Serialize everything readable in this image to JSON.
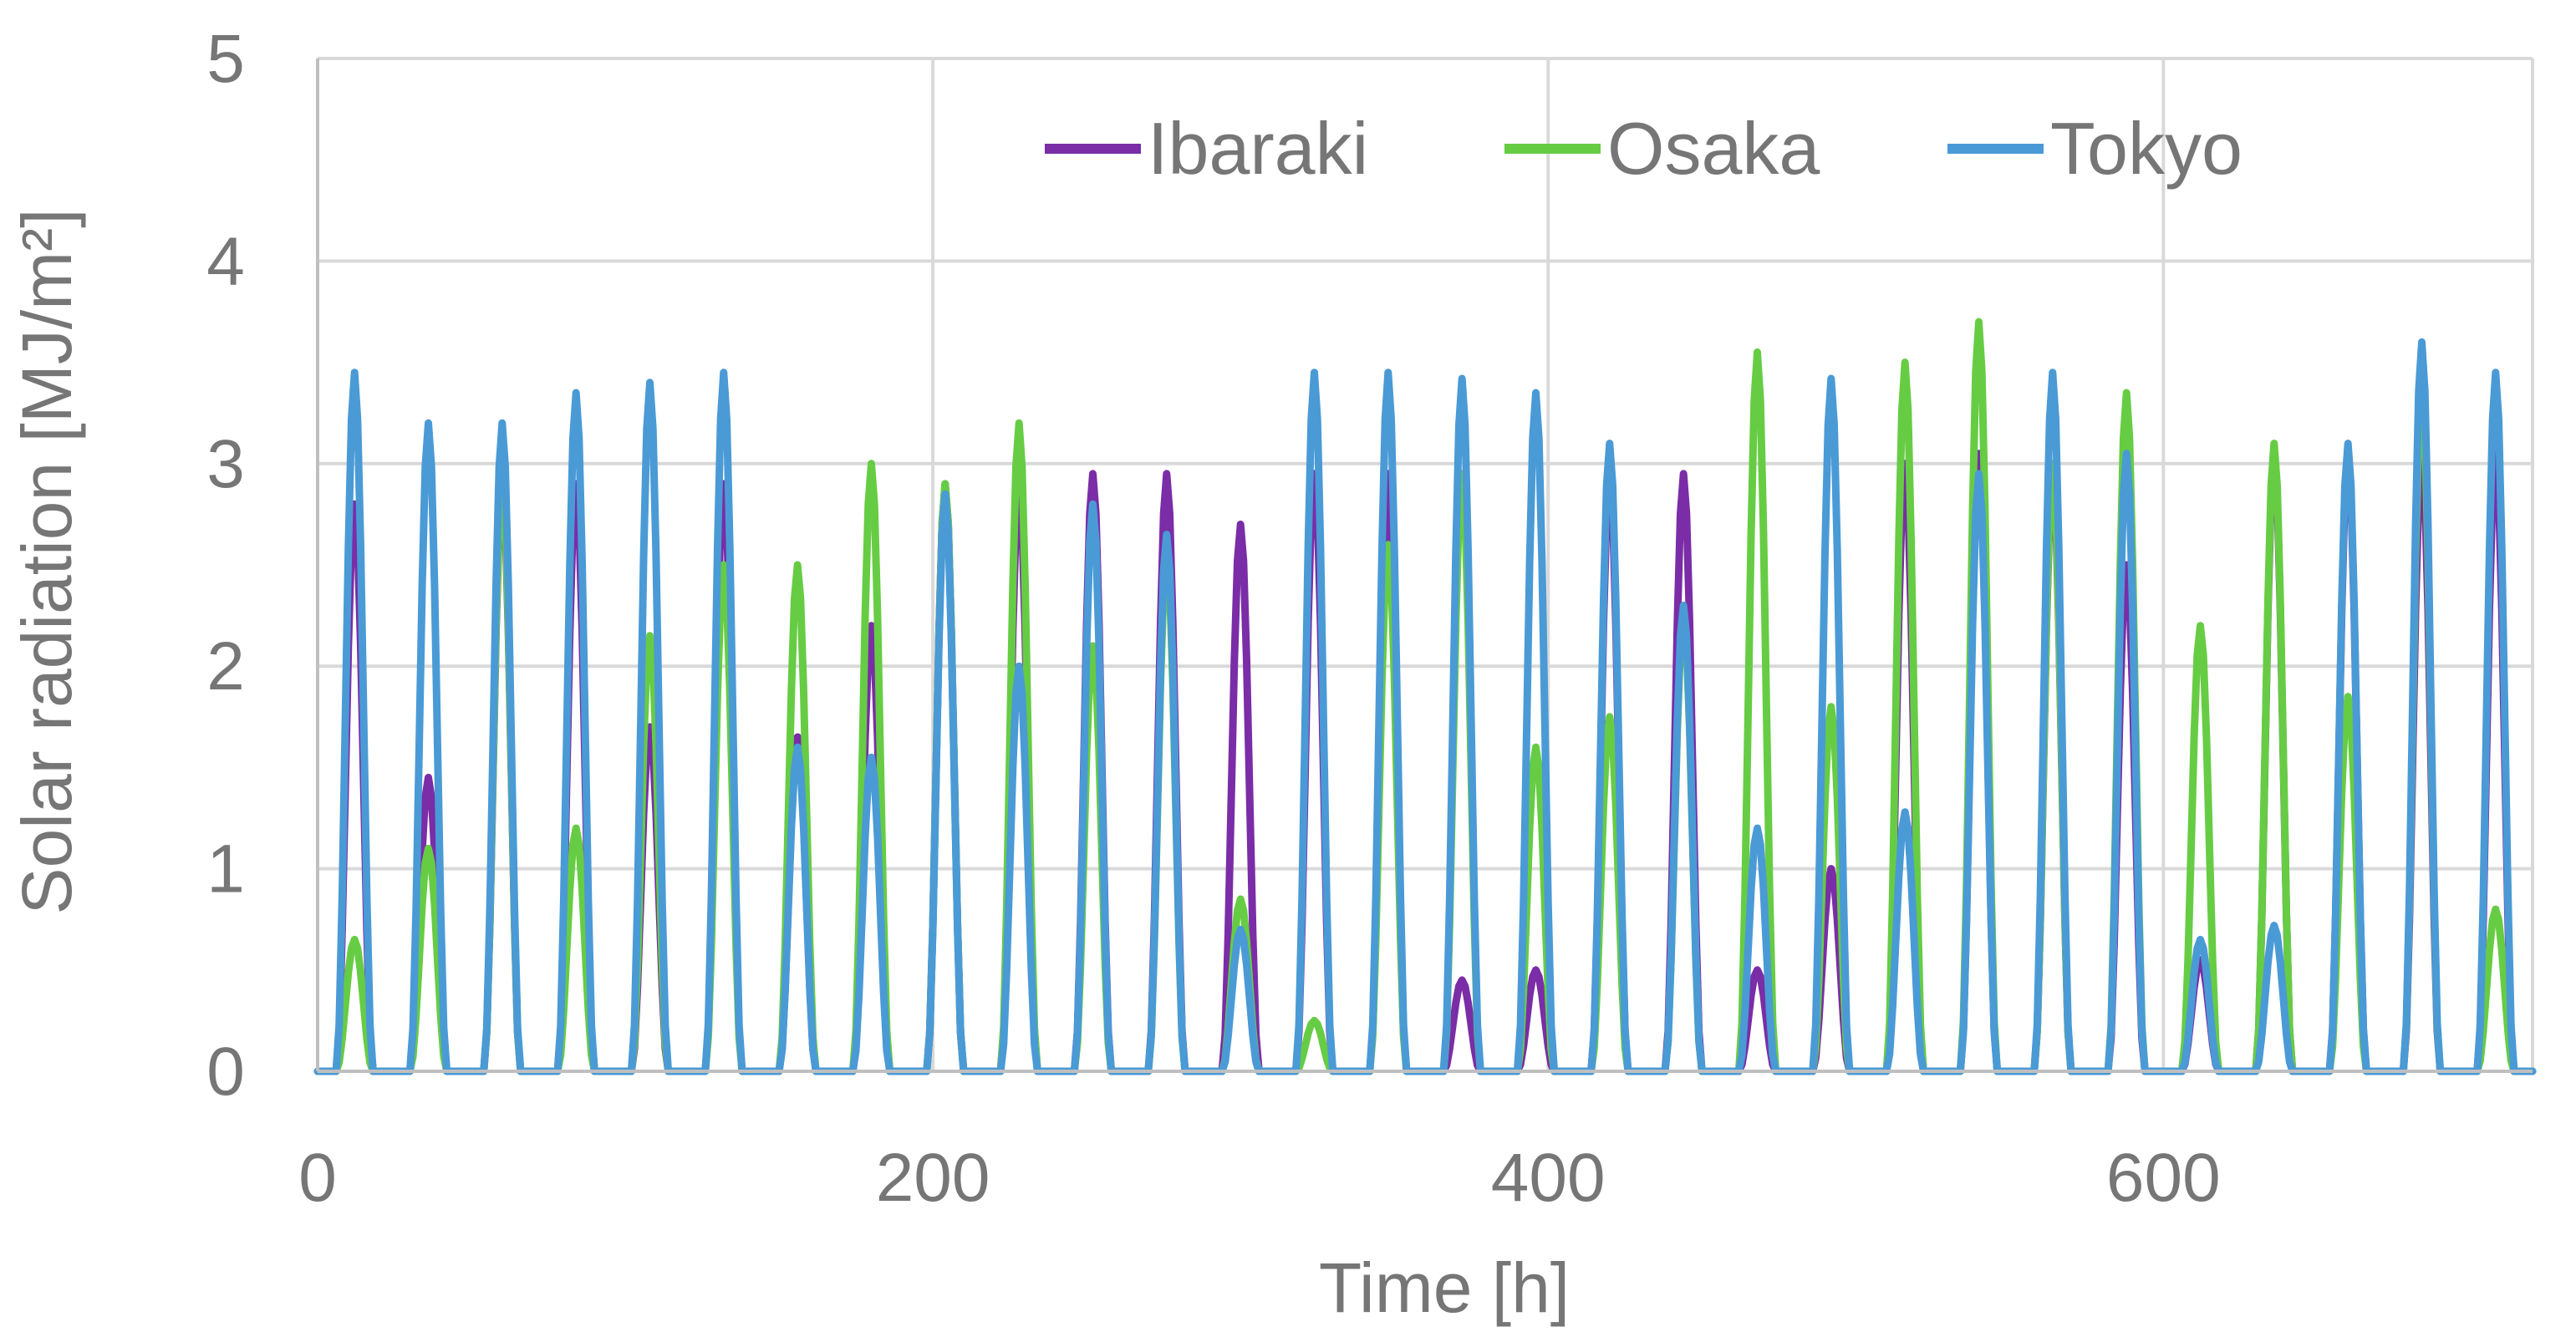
{
  "chart_data": {
    "type": "line",
    "xlabel": "Time [h]",
    "ylabel": "Solar radiation [MJ/m²]",
    "xlim": [
      0,
      720
    ],
    "ylim": [
      0,
      5
    ],
    "xticks": [
      0,
      200,
      400,
      600
    ],
    "yticks": [
      0,
      1,
      2,
      3,
      4,
      5
    ],
    "grid": true,
    "legend": "top",
    "series": [
      {
        "name": "Ibaraki",
        "color": "#7a2da6",
        "daily_peaks": [
          2.8,
          1.45,
          2.9,
          2.9,
          1.7,
          2.9,
          1.65,
          2.2,
          2.9,
          2.9,
          2.95,
          2.95,
          2.7,
          2.95,
          2.95,
          0.45,
          0.5,
          2.95,
          2.95,
          0.5,
          1.0,
          3.0,
          3.05,
          2.95,
          2.5,
          0.55,
          3.05,
          3.05,
          3.05,
          3.05
        ]
      },
      {
        "name": "Osaka",
        "color": "#66cc44",
        "daily_peaks": [
          0.65,
          1.1,
          2.95,
          1.2,
          2.15,
          2.5,
          2.5,
          3.0,
          2.9,
          3.2,
          2.1,
          2.55,
          0.85,
          0.25,
          2.6,
          2.95,
          1.6,
          1.75,
          2.25,
          3.55,
          1.8,
          3.5,
          3.7,
          3.0,
          3.35,
          2.2,
          3.1,
          1.85,
          3.4,
          0.8
        ]
      },
      {
        "name": "Tokyo",
        "color": "#4a9ad6",
        "daily_peaks": [
          3.45,
          3.2,
          3.2,
          3.35,
          3.4,
          3.45,
          1.6,
          1.55,
          2.85,
          2.0,
          2.8,
          2.65,
          0.7,
          3.45,
          3.45,
          3.42,
          3.35,
          3.1,
          2.3,
          1.2,
          3.42,
          1.28,
          2.95,
          3.45,
          3.05,
          0.65,
          0.72,
          3.1,
          3.6,
          3.45
        ]
      }
    ]
  }
}
